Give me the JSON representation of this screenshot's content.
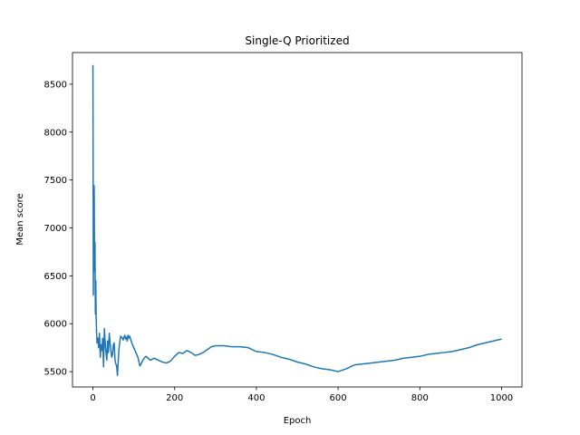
{
  "chart_data": {
    "type": "line",
    "title": "Single-Q Prioritized",
    "xlabel": "Epoch",
    "ylabel": "Mean score",
    "xlim": [
      -50,
      1050
    ],
    "ylim": [
      5340,
      8830
    ],
    "xticks": [
      0,
      200,
      400,
      600,
      800,
      1000
    ],
    "yticks": [
      5500,
      6000,
      6500,
      7000,
      7500,
      8000,
      8500
    ],
    "grid": false,
    "series_color": "#1f77b4",
    "series": [
      {
        "x": [
          0,
          1,
          2,
          3,
          4,
          5,
          6,
          7,
          8,
          9,
          10,
          12,
          14,
          16,
          18,
          20,
          22,
          24,
          26,
          28,
          30,
          32,
          34,
          36,
          38,
          40,
          42,
          44,
          46,
          48,
          50,
          52,
          54,
          56,
          58,
          60,
          62,
          64,
          66,
          68,
          70,
          72,
          74,
          76,
          78,
          80,
          82,
          84,
          86,
          88,
          90,
          95,
          100,
          105,
          110,
          115,
          120,
          125,
          130,
          140,
          150,
          160,
          170,
          180,
          190,
          200,
          210,
          220,
          230,
          240,
          250,
          260,
          270,
          280,
          290,
          300,
          320,
          340,
          360,
          380,
          400,
          420,
          440,
          460,
          480,
          500,
          520,
          540,
          560,
          580,
          600,
          620,
          640,
          660,
          680,
          700,
          720,
          740,
          760,
          780,
          800,
          820,
          840,
          860,
          880,
          900,
          920,
          940,
          960,
          980,
          1000
        ],
        "y": [
          8700,
          6300,
          7200,
          7440,
          6550,
          6850,
          6100,
          6450,
          6050,
          5900,
          5800,
          5850,
          5750,
          5900,
          5650,
          5780,
          5720,
          5850,
          5550,
          5950,
          5800,
          5700,
          5620,
          5820,
          5700,
          5900,
          5800,
          5720,
          5650,
          5680,
          5780,
          5800,
          5620,
          5580,
          5560,
          5460,
          5620,
          5750,
          5820,
          5870,
          5860,
          5850,
          5830,
          5860,
          5880,
          5840,
          5860,
          5820,
          5880,
          5850,
          5870,
          5800,
          5750,
          5700,
          5650,
          5560,
          5600,
          5640,
          5660,
          5620,
          5640,
          5620,
          5600,
          5590,
          5610,
          5660,
          5700,
          5690,
          5720,
          5700,
          5670,
          5680,
          5700,
          5730,
          5760,
          5770,
          5770,
          5760,
          5760,
          5750,
          5710,
          5700,
          5680,
          5650,
          5630,
          5600,
          5580,
          5550,
          5530,
          5520,
          5500,
          5530,
          5570,
          5580,
          5590,
          5600,
          5610,
          5620,
          5640,
          5650,
          5660,
          5680,
          5690,
          5700,
          5710,
          5730,
          5750,
          5780,
          5800,
          5820,
          5840
        ]
      }
    ]
  }
}
